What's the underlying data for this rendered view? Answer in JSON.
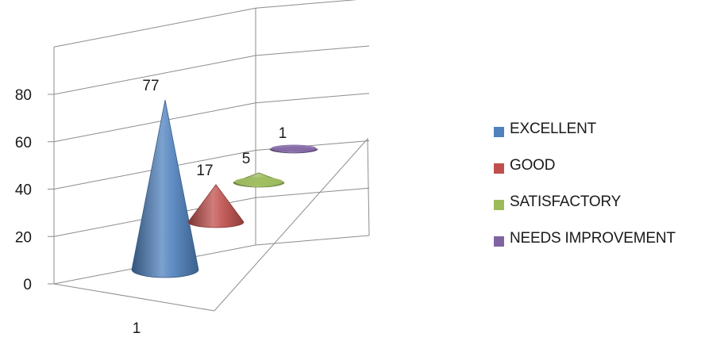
{
  "chart_data": {
    "type": "bar",
    "variant": "3d-cone",
    "title": "",
    "xlabel": "",
    "ylabel": "",
    "categories": [
      "1"
    ],
    "ylim": [
      0,
      80
    ],
    "yticks": [
      0,
      20,
      40,
      60,
      80
    ],
    "grid": true,
    "legend_position": "right",
    "series": [
      {
        "name": "EXCELLENT",
        "values": [
          77
        ],
        "color": "#4f81bd"
      },
      {
        "name": "GOOD",
        "values": [
          17
        ],
        "color": "#c0504d"
      },
      {
        "name": "SATISFACTORY",
        "values": [
          5
        ],
        "color": "#9bbb59"
      },
      {
        "name": "NEEDS IMPROVEMENT",
        "values": [
          1
        ],
        "color": "#8064a2"
      }
    ],
    "data_labels": [
      "77",
      "17",
      "5",
      "1"
    ]
  }
}
